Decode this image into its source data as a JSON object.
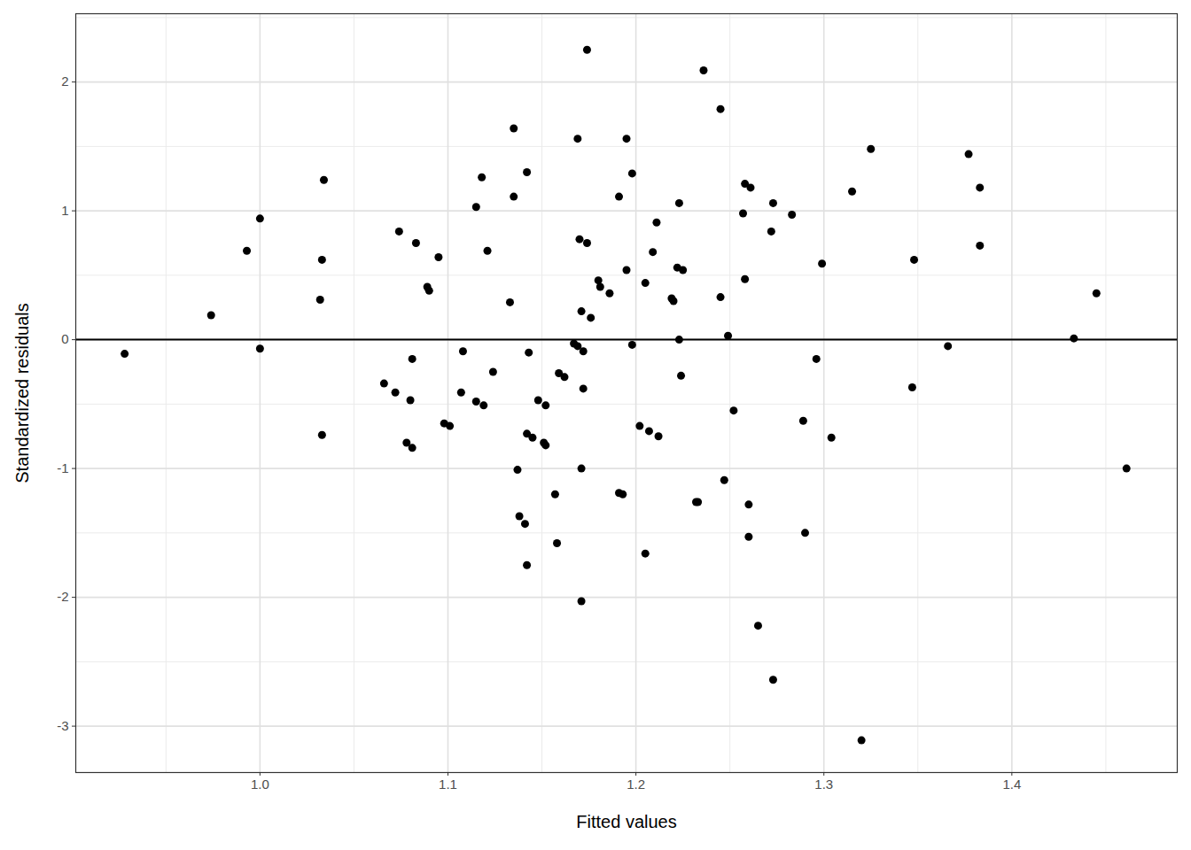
{
  "chart_data": {
    "type": "scatter",
    "x_label": "Fitted values",
    "y_label": "Standardized residuals",
    "color": "#000000",
    "marker": "circle",
    "grid": true,
    "hline": 0,
    "xlim": [
      0.902,
      1.488
    ],
    "ylim": [
      -3.36,
      2.53
    ],
    "xticks": [
      {
        "value": 1.0,
        "label": "1.0"
      },
      {
        "value": 1.1,
        "label": "1.1"
      },
      {
        "value": 1.2,
        "label": "1.2"
      },
      {
        "value": 1.3,
        "label": "1.3"
      },
      {
        "value": 1.4,
        "label": "1.4"
      }
    ],
    "yticks": [
      -3,
      -2,
      -1,
      0,
      1,
      2
    ],
    "x": [
      0.928,
      0.974,
      0.993,
      1.0,
      1.0,
      1.032,
      1.034,
      1.033,
      1.033,
      1.066,
      1.072,
      1.074,
      1.083,
      1.081,
      1.08,
      1.078,
      1.081,
      1.089,
      1.09,
      1.095,
      1.098,
      1.101,
      1.108,
      1.107,
      1.115,
      1.115,
      1.118,
      1.119,
      1.121,
      1.124,
      1.133,
      1.135,
      1.135,
      1.137,
      1.138,
      1.141,
      1.142,
      1.142,
      1.143,
      1.142,
      1.145,
      1.148,
      1.151,
      1.152,
      1.152,
      1.157,
      1.158,
      1.159,
      1.162,
      1.167,
      1.169,
      1.17,
      1.171,
      1.171,
      1.171,
      1.169,
      1.172,
      1.172,
      1.174,
      1.174,
      1.176,
      1.18,
      1.181,
      1.186,
      1.191,
      1.191,
      1.193,
      1.195,
      1.195,
      1.198,
      1.198,
      1.202,
      1.205,
      1.205,
      1.207,
      1.209,
      1.211,
      1.212,
      1.219,
      1.22,
      1.222,
      1.225,
      1.223,
      1.223,
      1.224,
      1.232,
      1.233,
      1.236,
      1.245,
      1.245,
      1.247,
      1.249,
      1.252,
      1.258,
      1.257,
      1.258,
      1.26,
      1.26,
      1.261,
      1.265,
      1.272,
      1.273,
      1.273,
      1.283,
      1.289,
      1.29,
      1.296,
      1.299,
      1.304,
      1.315,
      1.32,
      1.325,
      1.347,
      1.348,
      1.366,
      1.377,
      1.383,
      1.383,
      1.433,
      1.445,
      1.461
    ],
    "values": [
      -0.11,
      0.19,
      0.69,
      0.94,
      -0.07,
      0.31,
      1.24,
      0.62,
      -0.74,
      -0.34,
      -0.41,
      0.84,
      0.75,
      -0.15,
      -0.47,
      -0.8,
      -0.84,
      0.41,
      0.38,
      0.64,
      -0.65,
      -0.67,
      -0.09,
      -0.41,
      1.03,
      -0.48,
      1.26,
      -0.51,
      0.69,
      -0.25,
      0.29,
      1.64,
      1.11,
      -1.01,
      -1.37,
      -1.43,
      -1.75,
      1.3,
      -0.1,
      -0.73,
      -0.76,
      -0.47,
      -0.8,
      -0.82,
      -0.51,
      -1.2,
      -1.58,
      -0.26,
      -0.29,
      -0.03,
      1.56,
      0.78,
      0.22,
      -1.0,
      -2.03,
      -0.05,
      -0.09,
      -0.38,
      2.25,
      0.75,
      0.17,
      0.46,
      0.41,
      0.36,
      1.11,
      -1.19,
      -1.2,
      1.56,
      0.54,
      1.29,
      -0.04,
      -0.67,
      0.44,
      -1.66,
      -0.71,
      0.68,
      0.91,
      -0.75,
      0.32,
      0.3,
      0.56,
      0.54,
      1.06,
      0.0,
      -0.28,
      -1.26,
      -1.26,
      2.09,
      1.79,
      0.33,
      -1.09,
      0.03,
      -0.55,
      1.21,
      0.98,
      0.47,
      -1.28,
      -1.53,
      1.18,
      -2.22,
      0.84,
      1.06,
      -2.64,
      0.97,
      -0.63,
      -1.5,
      -0.15,
      0.59,
      -0.76,
      1.15,
      -3.11,
      1.48,
      -0.37,
      0.62,
      -0.05,
      1.44,
      1.18,
      0.73,
      0.01,
      0.36,
      -1.0
    ]
  }
}
